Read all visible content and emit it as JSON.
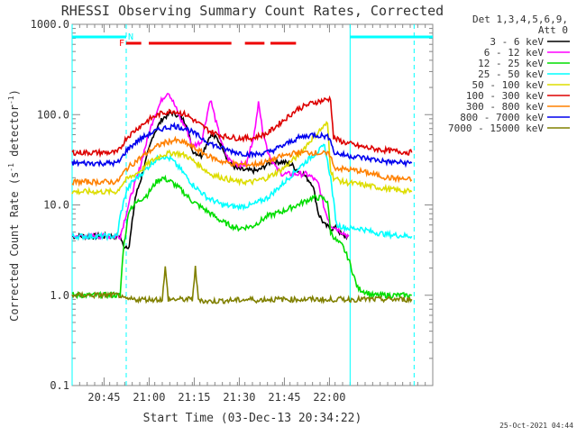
{
  "chart_data": {
    "type": "line",
    "title": "RHESSI Observing Summary Count Rates, Corrected",
    "xlabel": "Start Time (03-Dec-13 20:34:22)",
    "ylabel_prefix": "Corrected Count Rate (s",
    "ylabel_sup1": "-1",
    "ylabel_mid": " detector",
    "ylabel_sup2": "-1",
    "ylabel_suffix": ")",
    "yscale": "log",
    "ylim": [
      0.1,
      1000.0
    ],
    "xlim_minutes": [
      0,
      120
    ],
    "y_ticks": [
      {
        "value": 0.1,
        "label": "0.1"
      },
      {
        "value": 1.0,
        "label": "1.0"
      },
      {
        "value": 10.0,
        "label": "10.0"
      },
      {
        "value": 100.0,
        "label": "100.0"
      },
      {
        "value": 1000.0,
        "label": "1000.0"
      }
    ],
    "x_ticks": [
      {
        "minute": 10.63,
        "label": "20:45"
      },
      {
        "minute": 25.63,
        "label": "21:00"
      },
      {
        "minute": 40.63,
        "label": "21:15"
      },
      {
        "minute": 55.63,
        "label": "21:30"
      },
      {
        "minute": 70.63,
        "label": "21:45"
      },
      {
        "minute": 85.63,
        "label": "22:00"
      }
    ],
    "legend_header": [
      "Det 1,3,4,5,6,9,",
      "Att 0"
    ],
    "legend_position": "right",
    "series": [
      {
        "name": "3 - 6 keV",
        "color": "#000000",
        "x": [
          0,
          16,
          17,
          19,
          21,
          23,
          25,
          27,
          30,
          33,
          35,
          38,
          40,
          43,
          46,
          48,
          50,
          52,
          55,
          58,
          62,
          66,
          70,
          73,
          75,
          77,
          78,
          80,
          82,
          84,
          86,
          88,
          90,
          92
        ],
        "y": [
          4.5,
          4.5,
          3.5,
          3.5,
          12,
          20,
          35,
          60,
          90,
          105,
          100,
          80,
          40,
          35,
          60,
          55,
          45,
          30,
          25,
          24,
          24,
          30,
          30,
          28,
          24,
          22,
          20,
          17,
          8,
          6,
          5.5,
          5.5,
          4.5,
          4.5
        ]
      },
      {
        "name": "6 - 12 keV",
        "color": "#ff00ff",
        "x": [
          0,
          16,
          17,
          18,
          20,
          22,
          24,
          27,
          30,
          32,
          34,
          36,
          38,
          40,
          43,
          46,
          48,
          50,
          52,
          55,
          58,
          61,
          62,
          63,
          65,
          68,
          70,
          72,
          75,
          78,
          80,
          82,
          84,
          86,
          88,
          92
        ],
        "y": [
          4.5,
          4.5,
          6,
          8,
          14,
          22,
          40,
          90,
          150,
          180,
          130,
          90,
          70,
          45,
          50,
          150,
          80,
          45,
          32,
          28,
          28,
          70,
          150,
          80,
          40,
          25,
          22,
          22,
          22,
          22,
          20,
          17,
          9,
          6,
          5.5,
          4.5
        ]
      },
      {
        "name": "12 - 25 keV",
        "color": "#00dd00",
        "x": [
          0,
          15,
          16,
          17,
          19,
          22,
          25,
          28,
          30,
          33,
          36,
          40,
          45,
          50,
          55,
          60,
          65,
          70,
          75,
          80,
          83,
          85,
          86,
          88,
          90,
          92,
          95,
          100,
          105,
          113
        ],
        "y": [
          1.0,
          1.0,
          1.0,
          3.2,
          9,
          11,
          13,
          18,
          20,
          18,
          15,
          11,
          8.5,
          6.5,
          5.5,
          5.8,
          7.5,
          8.5,
          10,
          12,
          12,
          11,
          5,
          4,
          3.5,
          2.5,
          1.2,
          1.0,
          1.0,
          1.0
        ]
      },
      {
        "name": "25 - 50 keV",
        "color": "#00ffff",
        "x": [
          0,
          15,
          16,
          18,
          20,
          23,
          27,
          30,
          33,
          36,
          40,
          45,
          50,
          55,
          60,
          65,
          70,
          75,
          80,
          84,
          86,
          88,
          92,
          96,
          100,
          105,
          113
        ],
        "y": [
          4.5,
          4.5,
          7.5,
          14,
          18,
          22,
          30,
          35,
          32,
          25,
          17,
          12,
          10,
          9.5,
          10,
          12,
          17,
          25,
          35,
          45,
          20,
          6,
          5.5,
          5.5,
          5,
          4.7,
          4.5
        ]
      },
      {
        "name": "50 - 100 keV",
        "color": "#dddd00",
        "x": [
          0,
          15,
          16,
          18,
          22,
          26,
          30,
          34,
          38,
          42,
          46,
          50,
          55,
          60,
          65,
          70,
          75,
          80,
          83,
          85,
          86,
          87,
          90,
          95,
          100,
          105,
          113
        ],
        "y": [
          14,
          14,
          16,
          19,
          23,
          30,
          36,
          38,
          35,
          28,
          22,
          20,
          18,
          18,
          20,
          25,
          35,
          55,
          70,
          80,
          25,
          20,
          18,
          17,
          16,
          15,
          14
        ]
      },
      {
        "name": "100 - 300 keV",
        "color": "#dd0000",
        "x": [
          0,
          15,
          16,
          18,
          22,
          26,
          30,
          34,
          38,
          42,
          46,
          50,
          55,
          60,
          65,
          70,
          75,
          80,
          84,
          86,
          87,
          90,
          95,
          100,
          105,
          113
        ],
        "y": [
          38,
          38,
          42,
          55,
          72,
          90,
          105,
          110,
          100,
          80,
          65,
          58,
          55,
          55,
          62,
          85,
          115,
          135,
          145,
          150,
          55,
          50,
          45,
          42,
          40,
          38
        ]
      },
      {
        "name": "300 - 800 keV",
        "color": "#ff8000",
        "x": [
          0,
          15,
          16,
          18,
          22,
          26,
          30,
          34,
          38,
          42,
          46,
          50,
          55,
          60,
          65,
          70,
          75,
          80,
          84,
          86,
          87,
          90,
          95,
          100,
          105,
          113
        ],
        "y": [
          18,
          18,
          20,
          25,
          32,
          40,
          48,
          52,
          48,
          40,
          34,
          30,
          28,
          28,
          30,
          35,
          38,
          38,
          37,
          36,
          26,
          25,
          24,
          22,
          20,
          19
        ]
      },
      {
        "name": "800 - 7000 keV",
        "color": "#0000ee",
        "x": [
          0,
          15,
          16,
          18,
          22,
          26,
          30,
          34,
          38,
          42,
          46,
          50,
          55,
          60,
          65,
          70,
          75,
          80,
          84,
          86,
          87,
          90,
          95,
          100,
          105,
          113
        ],
        "y": [
          29,
          29,
          31,
          40,
          52,
          62,
          70,
          75,
          70,
          58,
          48,
          42,
          38,
          36,
          38,
          45,
          55,
          60,
          58,
          55,
          38,
          36,
          34,
          32,
          30,
          29
        ]
      },
      {
        "name": "7000 - 15000 keV",
        "color": "#808000",
        "x": [
          0,
          16,
          17,
          30,
          31,
          32,
          40,
          41,
          42,
          43,
          44,
          60,
          61,
          62,
          63,
          64,
          80,
          84,
          85,
          86,
          113
        ],
        "y": [
          1.0,
          1.0,
          0.9,
          0.9,
          2.0,
          0.9,
          0.9,
          2.0,
          0.9,
          0.9,
          0.85,
          0.9,
          0.9,
          0.85,
          0.9,
          0.9,
          0.9,
          0.9,
          0.85,
          0.9,
          0.9
        ]
      }
    ],
    "annotations": [
      {
        "label": "F",
        "color": "#ff0000",
        "minute": 16.5
      },
      {
        "label": "N",
        "color": "#00ffff",
        "minute": 19.5
      }
    ],
    "flare_flag_segments": [
      [
        18,
        23
      ],
      [
        25.5,
        53
      ],
      [
        57.5,
        64
      ],
      [
        66,
        74.5
      ]
    ],
    "night_segments": [
      [
        0,
        18
      ],
      [
        92.5,
        120
      ]
    ],
    "boundary_minutes": {
      "solid": [
        0,
        92.5
      ],
      "dashed": [
        18,
        113.8
      ]
    },
    "footer_date": "25-Oct-2021 04:44"
  }
}
